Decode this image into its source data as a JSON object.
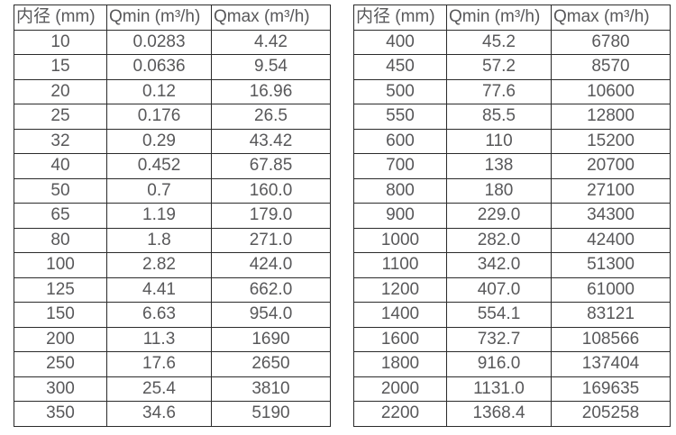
{
  "page": {
    "background_color": "#ffffff",
    "border_color": "#2b2b2b",
    "text_color": "#58585a"
  },
  "tables": [
    {
      "name": "flow-spec-table-small-diameters",
      "headers": [
        "内径 (mm)",
        "Qmin (m³/h)",
        "Qmax (m³/h)"
      ],
      "rows": [
        [
          "10",
          "0.0283",
          "4.42"
        ],
        [
          "15",
          "0.0636",
          "9.54"
        ],
        [
          "20",
          "0.12",
          "16.96"
        ],
        [
          "25",
          "0.176",
          "26.5"
        ],
        [
          "32",
          "0.29",
          "43.42"
        ],
        [
          "40",
          "0.452",
          "67.85"
        ],
        [
          "50",
          "0.7",
          "160.0"
        ],
        [
          "65",
          "1.19",
          "179.0"
        ],
        [
          "80",
          "1.8",
          "271.0"
        ],
        [
          "100",
          "2.82",
          "424.0"
        ],
        [
          "125",
          "4.41",
          "662.0"
        ],
        [
          "150",
          "6.63",
          "954.0"
        ],
        [
          "200",
          "11.3",
          "1690"
        ],
        [
          "250",
          "17.6",
          "2650"
        ],
        [
          "300",
          "25.4",
          "3810"
        ],
        [
          "350",
          "34.6",
          "5190"
        ]
      ]
    },
    {
      "name": "flow-spec-table-large-diameters",
      "headers": [
        "内径 (mm)",
        "Qmin (m³/h)",
        "Qmax (m³/h)"
      ],
      "rows": [
        [
          "400",
          "45.2",
          "6780"
        ],
        [
          "450",
          "57.2",
          "8570"
        ],
        [
          "500",
          "77.6",
          "10600"
        ],
        [
          "550",
          "85.5",
          "12800"
        ],
        [
          "600",
          "110",
          "15200"
        ],
        [
          "700",
          "138",
          "20700"
        ],
        [
          "800",
          "180",
          "27100"
        ],
        [
          "900",
          "229.0",
          "34300"
        ],
        [
          "1000",
          "282.0",
          "42400"
        ],
        [
          "1100",
          "342.0",
          "51300"
        ],
        [
          "1200",
          "407.0",
          "61000"
        ],
        [
          "1400",
          "554.1",
          "83121"
        ],
        [
          "1600",
          "732.7",
          "108566"
        ],
        [
          "1800",
          "916.0",
          "137404"
        ],
        [
          "2000",
          "1131.0",
          "169635"
        ],
        [
          "2200",
          "1368.4",
          "205258"
        ]
      ]
    }
  ]
}
